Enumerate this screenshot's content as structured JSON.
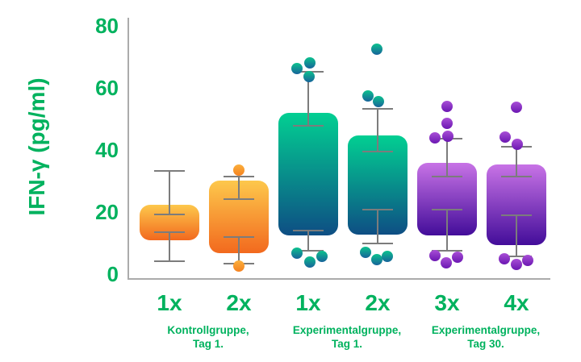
{
  "chart_data": {
    "type": "box",
    "title": "",
    "ylabel": "IFN-γ (pg/ml)",
    "xlabel": "",
    "ylim": [
      0,
      84
    ],
    "y_ticks": [
      80,
      60,
      40,
      20,
      0
    ],
    "grid": false,
    "legend": "none",
    "groups": [
      {
        "tick": "1x",
        "palette": "orange",
        "bar": [
          11.0,
          22.3
        ],
        "upper_whisker": {
          "from": 19.5,
          "to": 33.5
        },
        "lower_whisker": {
          "from": 13.7,
          "to": 4.5
        },
        "points_above": [],
        "points_below": []
      },
      {
        "tick": "2x",
        "palette": "orange",
        "bar": [
          6.7,
          30.0
        ],
        "upper_whisker": {
          "from": 24.4,
          "to": 31.7
        },
        "lower_whisker": {
          "from": 12.1,
          "to": 3.6
        },
        "points_above": [
          {
            "v": 33.5,
            "dx": 0
          }
        ],
        "points_below": [
          {
            "v": 2.6,
            "dx": 0
          }
        ]
      },
      {
        "tick": "1x",
        "palette": "teal",
        "bar": [
          12.5,
          51.9
        ],
        "upper_whisker": {
          "from": 48.0,
          "to": 65.3
        },
        "lower_whisker": {
          "from": 14.3,
          "to": 7.8
        },
        "points_above": [
          {
            "v": 66.1,
            "dx": -14
          },
          {
            "v": 68.0,
            "dx": 2
          },
          {
            "v": 63.6,
            "dx": 1
          }
        ],
        "points_below": [
          {
            "v": 6.7,
            "dx": -14
          },
          {
            "v": 3.9,
            "dx": 2
          },
          {
            "v": 5.6,
            "dx": 17
          }
        ]
      },
      {
        "tick": "2x",
        "palette": "teal",
        "bar": [
          12.8,
          44.5
        ],
        "upper_whisker": {
          "from": 39.8,
          "to": 53.4
        },
        "lower_whisker": {
          "from": 20.9,
          "to": 10.1
        },
        "points_above": [
          {
            "v": 72.4,
            "dx": -1
          },
          {
            "v": 57.3,
            "dx": -12
          },
          {
            "v": 55.5,
            "dx": 1
          }
        ],
        "points_below": [
          {
            "v": 6.9,
            "dx": -15
          },
          {
            "v": 4.7,
            "dx": -1
          },
          {
            "v": 5.8,
            "dx": 12
          }
        ]
      },
      {
        "tick": "3x",
        "palette": "purple",
        "bar": [
          12.5,
          35.9
        ],
        "upper_whisker": {
          "from": 31.6,
          "to": 43.8
        },
        "lower_whisker": {
          "from": 20.9,
          "to": 7.8
        },
        "points_above": [
          {
            "v": 54.0,
            "dx": 0
          },
          {
            "v": 48.6,
            "dx": 0
          },
          {
            "v": 43.8,
            "dx": -15
          },
          {
            "v": 44.3,
            "dx": 1
          }
        ],
        "points_below": [
          {
            "v": 5.9,
            "dx": -15
          },
          {
            "v": 3.6,
            "dx": -1
          },
          {
            "v": 5.4,
            "dx": 13
          }
        ]
      },
      {
        "tick": "4x",
        "palette": "purple",
        "bar": [
          9.3,
          35.3
        ],
        "upper_whisker": {
          "from": 31.7,
          "to": 41.2
        },
        "lower_whisker": {
          "from": 19.2,
          "to": 6.0
        },
        "points_above": [
          {
            "v": 53.8,
            "dx": 0
          },
          {
            "v": 44.1,
            "dx": -14
          },
          {
            "v": 41.8,
            "dx": 1
          }
        ],
        "points_below": [
          {
            "v": 4.9,
            "dx": -15
          },
          {
            "v": 3.1,
            "dx": 0
          },
          {
            "v": 4.5,
            "dx": 14
          }
        ]
      }
    ],
    "captions": [
      {
        "line1": "Kontrollgruppe,",
        "line2": "Tag 1.",
        "spans_groups": [
          0,
          1
        ]
      },
      {
        "line1": "Experimentalgruppe,",
        "line2": "Tag 1.",
        "spans_groups": [
          2,
          3
        ]
      },
      {
        "line1": "Experimentalgruppe,",
        "line2": "Tag 30.",
        "spans_groups": [
          4,
          5
        ]
      }
    ]
  },
  "colors": {
    "label_green": "#00b25e",
    "whisker_gray": "#7c7c7c",
    "axis_gray": "#ababab",
    "palettes": {
      "orange": {
        "bar_top": "#fdc84c",
        "bar_bottom": "#f2691e",
        "dot_top": "#fbaf3c",
        "dot_bottom": "#f58220"
      },
      "teal": {
        "bar_top": "#02cf92",
        "bar_bottom": "#0e4e84",
        "dot_top": "#0cc28e",
        "dot_bottom": "#17639a"
      },
      "purple": {
        "bar_top": "#c873e6",
        "bar_bottom": "#430d9a",
        "dot_top": "#a94fd6",
        "dot_bottom": "#6b17b2"
      }
    }
  }
}
